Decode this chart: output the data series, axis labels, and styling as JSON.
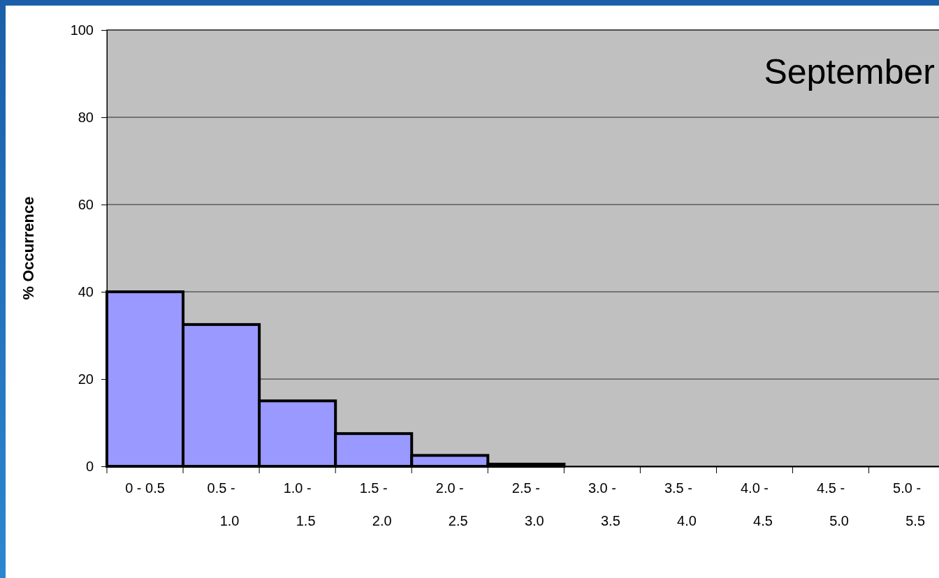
{
  "chart_data": {
    "type": "bar",
    "title": "September",
    "ylabel": "% Occurrence",
    "categories": [
      "0 - 0.5",
      "0.5 - 1.0",
      "1.0 - 1.5",
      "1.5 - 2.0",
      "2.0 - 2.5",
      "2.5 - 3.0",
      "3.0 - 3.5",
      "3.5 - 4.0",
      "4.0 - 4.5",
      "4.5 - 5.0",
      "5.0 - 5.5"
    ],
    "values": [
      40,
      32.5,
      15,
      7.5,
      2.5,
      0.5,
      0,
      0,
      0,
      0,
      0
    ],
    "color": "#9999ff",
    "ylim": [
      0,
      100
    ],
    "yticks": [
      0,
      20,
      40,
      60,
      80,
      100
    ],
    "grid": "y"
  }
}
